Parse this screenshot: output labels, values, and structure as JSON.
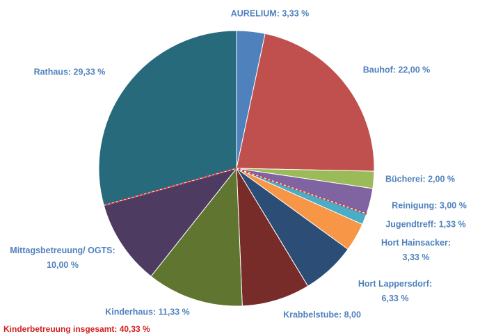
{
  "chart_data": {
    "type": "pie",
    "value_labels": [
      "AURELIUM: 3,33 %",
      "Bauhof: 22,00 %",
      "Bücherei: 2,00 %",
      "Reinigung: 3,00 %",
      "Jugendtreff: 1,33 %",
      "Hort Hainsacker: 3,33 %",
      "Hort Lappersdorf: 6,33 %",
      "Krabbelstube: 8,00",
      "Kinderhaus: 11,33 %",
      "Mittagsbetreuung/ OGTS: 10,00 %",
      "Rathaus: 29,33 %"
    ],
    "values": [
      3.33,
      22.0,
      2.0,
      3.0,
      1.33,
      3.33,
      6.33,
      8.0,
      11.33,
      10.0,
      29.33
    ],
    "colors": [
      "#4f81bd",
      "#c0504d",
      "#9bbb59",
      "#8064a2",
      "#4bacc6",
      "#f79646",
      "#2c4d75",
      "#772c2a",
      "#5f7530",
      "#4d3b62",
      "#276a7c"
    ],
    "annotation": "Kinderbetreuung insgesamt: 40,33 %"
  }
}
